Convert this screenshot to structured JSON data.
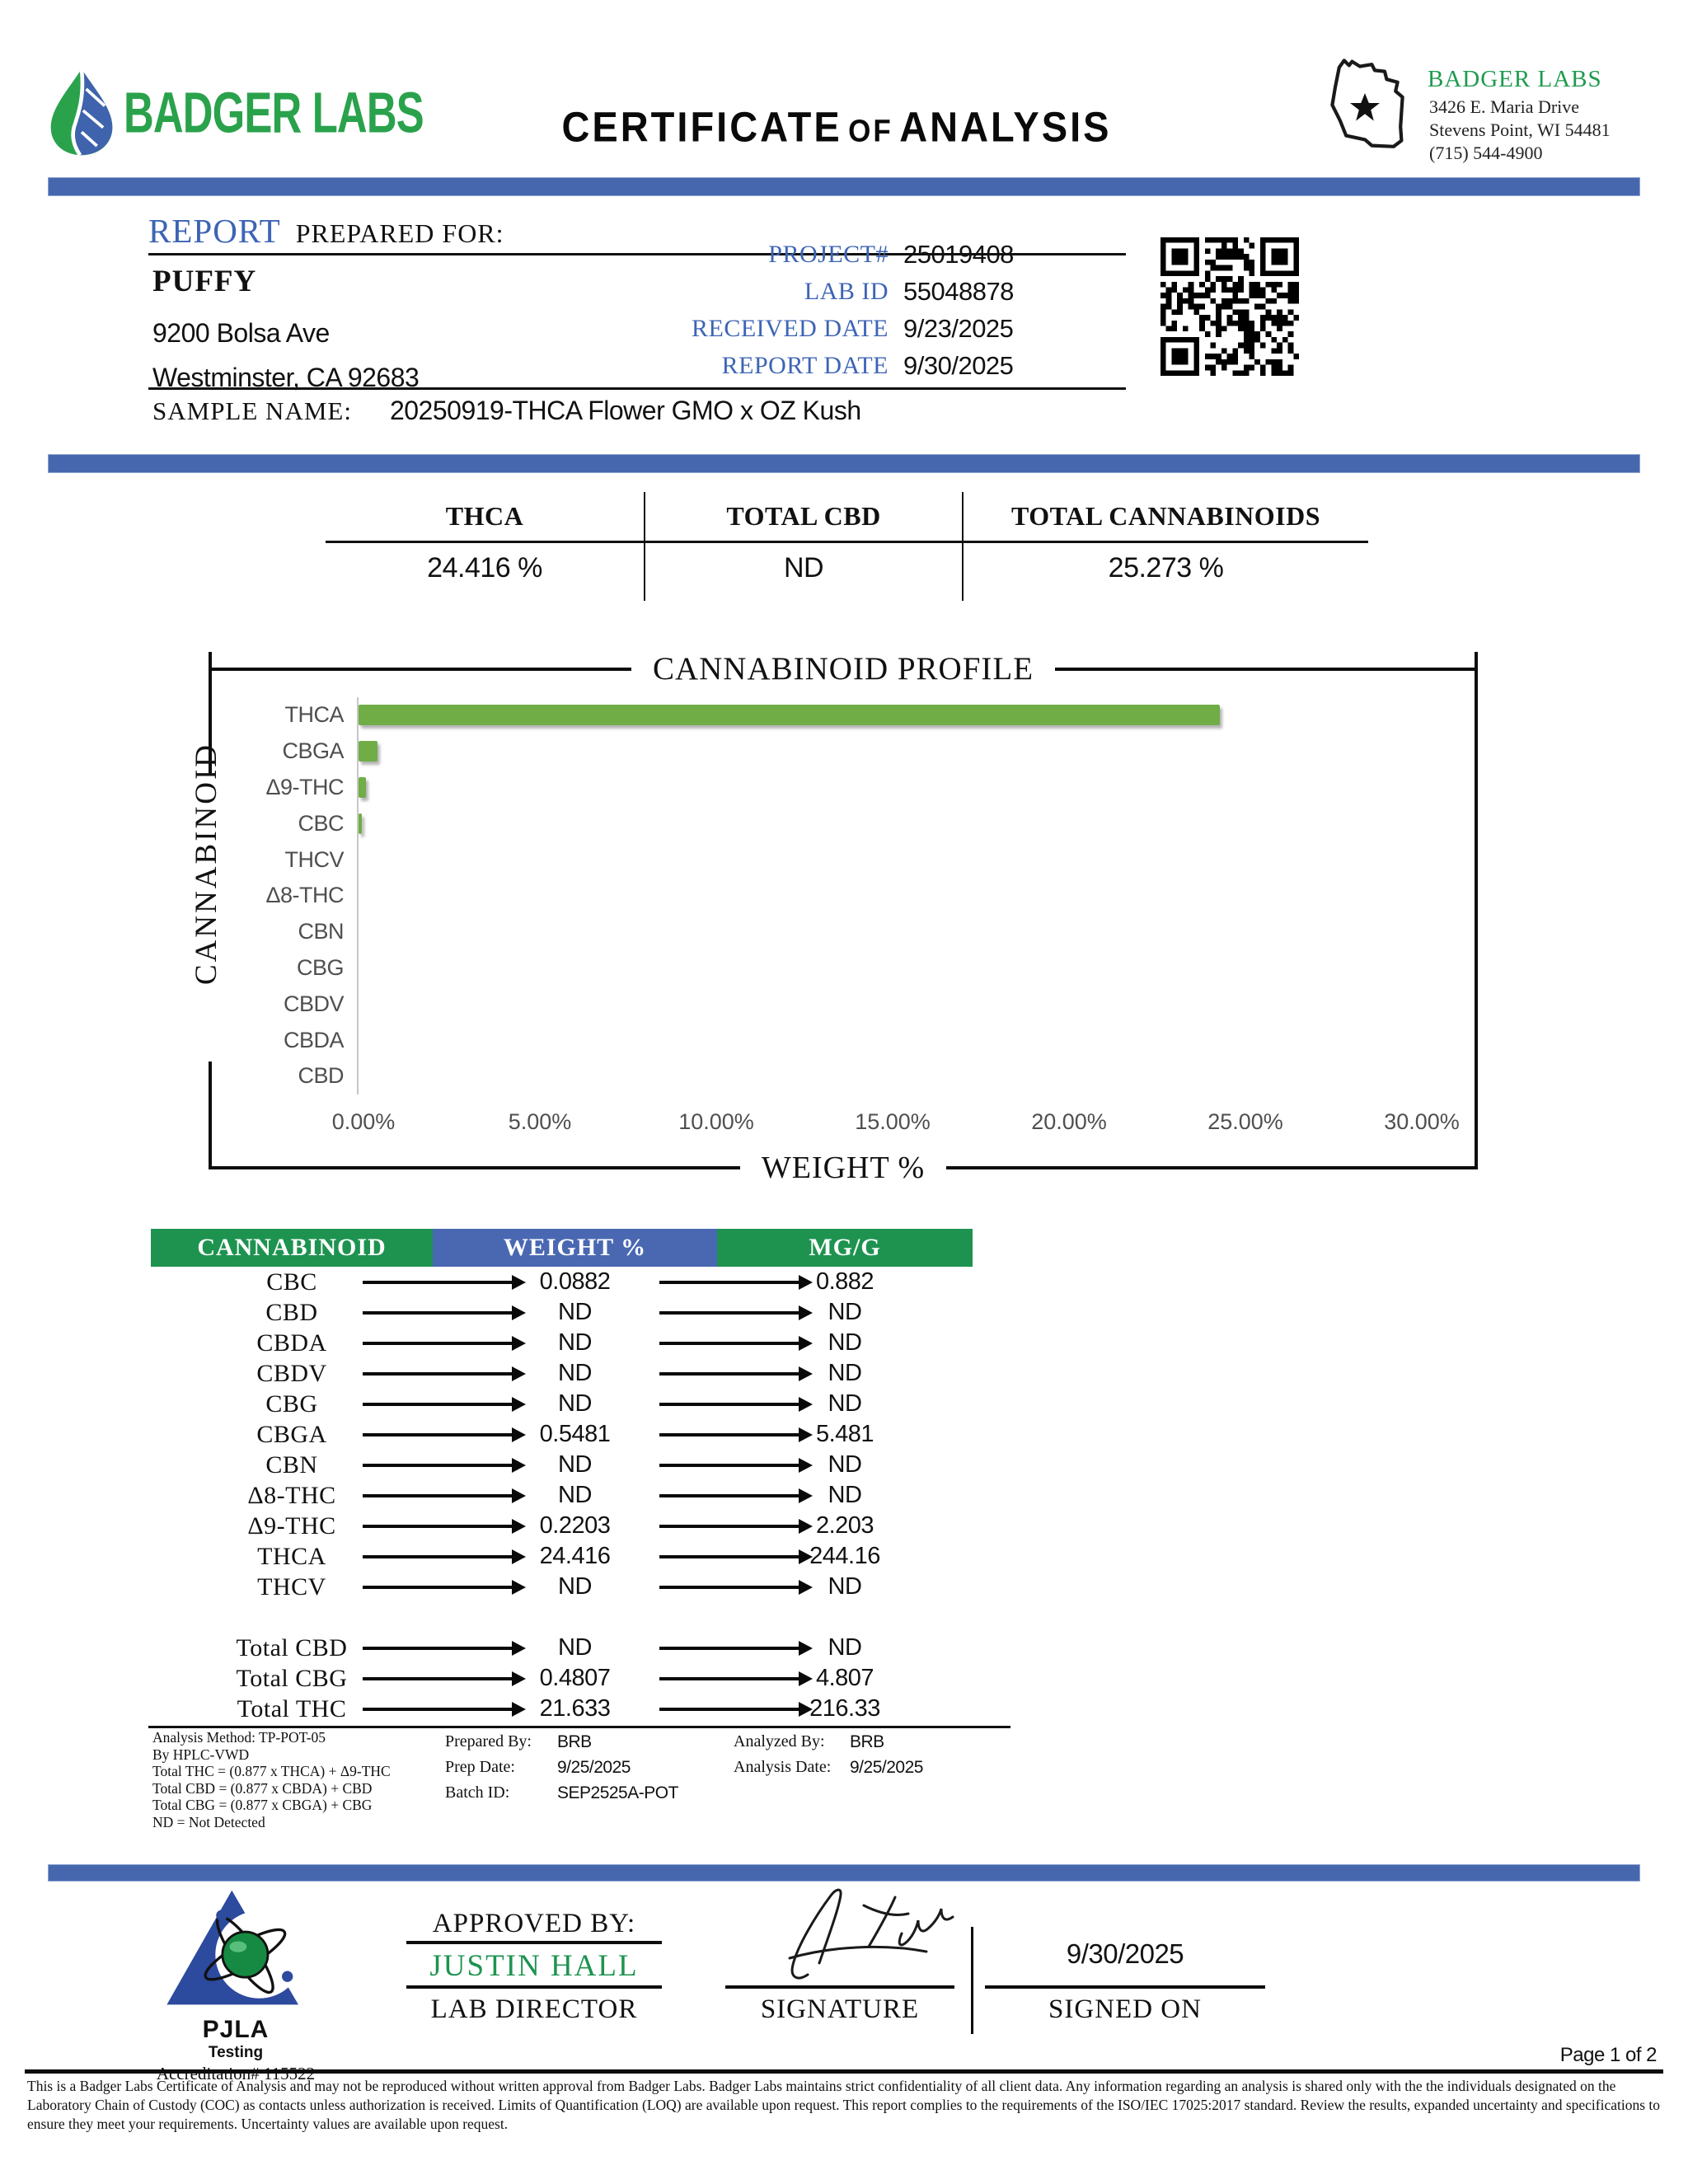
{
  "brand": {
    "logo_text": "BADGER LABS",
    "title_main1": "CERTIFICATE",
    "title_of": "OF",
    "title_main2": "ANALYSIS",
    "lab_name": "BADGER LABS",
    "address1": "3426 E. Maria Drive",
    "address2": "Stevens Point, WI 54481",
    "phone": "(715) 544-4900",
    "colors": {
      "accent_blue": "#4667ae",
      "accent_green": "#1e9350",
      "logo_green": "#2aa24c",
      "bar_green": "#70ad47"
    }
  },
  "report": {
    "heading_primary": "REPORT",
    "heading_secondary": "PREPARED FOR:",
    "client_name": "PUFFY",
    "client_address1": "9200 Bolsa Ave",
    "client_address2": "Westminster, CA 92683",
    "fields": [
      {
        "label": "PROJECT#",
        "value": "25019408"
      },
      {
        "label": "LAB ID",
        "value": "55048878"
      },
      {
        "label": "RECEIVED DATE",
        "value": "9/23/2025"
      },
      {
        "label": "REPORT DATE",
        "value": "9/30/2025"
      }
    ],
    "sample_label": "SAMPLE NAME:",
    "sample_name": "20250919-THCA Flower GMO x OZ Kush"
  },
  "summary": {
    "columns": [
      {
        "label": "THCA",
        "value": "24.416 %"
      },
      {
        "label": "TOTAL CBD",
        "value": "ND"
      },
      {
        "label": "TOTAL CANNABINOIDS",
        "value": "25.273 %"
      }
    ]
  },
  "chart_data": {
    "type": "bar",
    "orientation": "horizontal",
    "title": "CANNABINOID PROFILE",
    "xlabel": "WEIGHT %",
    "ylabel": "CANNABINOID",
    "categories": [
      "THCA",
      "CBGA",
      "Δ9-THC",
      "CBC",
      "THCV",
      "Δ8-THC",
      "CBN",
      "CBG",
      "CBDV",
      "CBDA",
      "CBD"
    ],
    "values": [
      24.416,
      0.5481,
      0.2203,
      0.0882,
      0,
      0,
      0,
      0,
      0,
      0,
      0
    ],
    "xlim": [
      0,
      30
    ],
    "xticks": [
      "0.00%",
      "5.00%",
      "10.00%",
      "15.00%",
      "20.00%",
      "25.00%",
      "30.00%"
    ],
    "grid": false,
    "bar_color": "#70ad47"
  },
  "results_table": {
    "headers": [
      "CANNABINOID",
      "WEIGHT %",
      "MG/G"
    ],
    "rows": [
      {
        "name": "CBC",
        "weight_pct": "0.0882",
        "mg_g": "0.882"
      },
      {
        "name": "CBD",
        "weight_pct": "ND",
        "mg_g": "ND"
      },
      {
        "name": "CBDA",
        "weight_pct": "ND",
        "mg_g": "ND"
      },
      {
        "name": "CBDV",
        "weight_pct": "ND",
        "mg_g": "ND"
      },
      {
        "name": "CBG",
        "weight_pct": "ND",
        "mg_g": "ND"
      },
      {
        "name": "CBGA",
        "weight_pct": "0.5481",
        "mg_g": "5.481"
      },
      {
        "name": "CBN",
        "weight_pct": "ND",
        "mg_g": "ND"
      },
      {
        "name": "Δ8-THC",
        "weight_pct": "ND",
        "mg_g": "ND"
      },
      {
        "name": "Δ9-THC",
        "weight_pct": "0.2203",
        "mg_g": "2.203"
      },
      {
        "name": "THCA",
        "weight_pct": "24.416",
        "mg_g": "244.16"
      },
      {
        "name": "THCV",
        "weight_pct": "ND",
        "mg_g": "ND"
      }
    ],
    "total_rows": [
      {
        "name": "Total CBD",
        "weight_pct": "ND",
        "mg_g": "ND"
      },
      {
        "name": "Total CBG",
        "weight_pct": "0.4807",
        "mg_g": "4.807"
      },
      {
        "name": "Total THC",
        "weight_pct": "21.633",
        "mg_g": "216.33"
      }
    ]
  },
  "methods": {
    "notes": [
      "Analysis Method: TP-POT-05",
      "By HPLC-VWD",
      "Total THC = (0.877 x  THCA) + Δ9-THC",
      "Total CBD = (0.877 x  CBDA) + CBD",
      "Total CBG = (0.877 x  CBGA) + CBG",
      "ND = Not Detected"
    ],
    "prep_items": [
      {
        "label": "Prepared By:",
        "value": "BRB"
      },
      {
        "label": "Prep Date:",
        "value": "9/25/2025"
      },
      {
        "label": "Batch ID:",
        "value": "SEP2525A-POT"
      }
    ],
    "analysis_items": [
      {
        "label": "Analyzed By:",
        "value": "BRB"
      },
      {
        "label": "Analysis Date:",
        "value": "9/25/2025"
      }
    ]
  },
  "approval": {
    "approved_by_label": "APPROVED BY:",
    "approver_name": "JUSTIN HALL",
    "approver_title": "LAB DIRECTOR",
    "signature_label": "SIGNATURE",
    "signed_on_date": "9/30/2025",
    "signed_on_label": "SIGNED ON"
  },
  "accreditation": {
    "org": "PJLA",
    "sub": "Testing",
    "number": "Accreditation# 115522"
  },
  "footer": {
    "page": "Page 1 of 2",
    "disclaimer": "This is a Badger Labs Certificate of Analysis and may not be reproduced without written approval from Badger Labs. Badger Labs maintains strict confidentiality of all client data. Any information regarding an analysis is shared only with the the individuals designated on the Laboratory Chain of Custody (COC) as contacts unless authorization is received. Limits of Quantification (LOQ) are available upon request. This report complies to the requirements of the ISO/IEC 17025:2017 standard. Review the results, expanded uncertainty and specifications to ensure they meet your requirements. Uncertainty values are available upon request."
  }
}
